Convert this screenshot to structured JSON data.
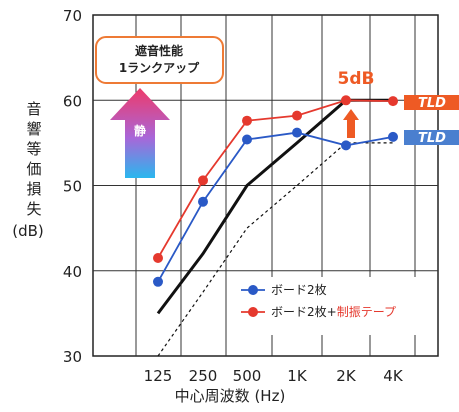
{
  "chart_data": {
    "type": "line",
    "ylabel_chars": [
      "音",
      "響",
      "等",
      "価",
      "損",
      "失"
    ],
    "ylabel_unit": "(dB)",
    "xlabel": "中心周波数 (Hz)",
    "categories": [
      "125",
      "250",
      "500",
      "1K",
      "2K",
      "4K"
    ],
    "ylim": [
      30,
      70
    ],
    "yticks": [
      30,
      40,
      50,
      60,
      70
    ],
    "grid": true,
    "legend": {
      "position": "bottom-right",
      "entries": [
        {
          "label": "ボード2枚",
          "color": "#2a59c6"
        },
        {
          "label_prefix": "ボード2枚+",
          "label_suffix": "制振テープ",
          "color": "#e5392e"
        }
      ]
    },
    "series": [
      {
        "name": "ボード2枚",
        "color": "#2a59c6",
        "values": [
          38.7,
          48.1,
          55.4,
          56.2,
          54.7,
          55.7
        ]
      },
      {
        "name": "ボード2枚+制振テープ",
        "color": "#e5392e",
        "values": [
          41.5,
          50.6,
          57.6,
          58.2,
          60.0,
          59.9
        ]
      }
    ],
    "reference_lines": [
      {
        "style": "solid-black",
        "values": [
          35,
          42,
          50,
          55,
          60,
          60
        ]
      },
      {
        "style": "dashed-black",
        "values": [
          30,
          37.5,
          45,
          50,
          55,
          55
        ]
      }
    ],
    "annotations": {
      "badge_line1": "遮音性能",
      "badge_line2": "1ランクアップ",
      "arrow_label": "静",
      "delta_label": "5dB",
      "tag_upper": "TLD",
      "tag_lower": "TLD"
    }
  },
  "colors": {
    "blue": "#2a59c6",
    "red": "#e5392e",
    "orange": "#ee5a24",
    "tag_blue": "#4a7fcf",
    "badge_border": "#ee7a35"
  }
}
